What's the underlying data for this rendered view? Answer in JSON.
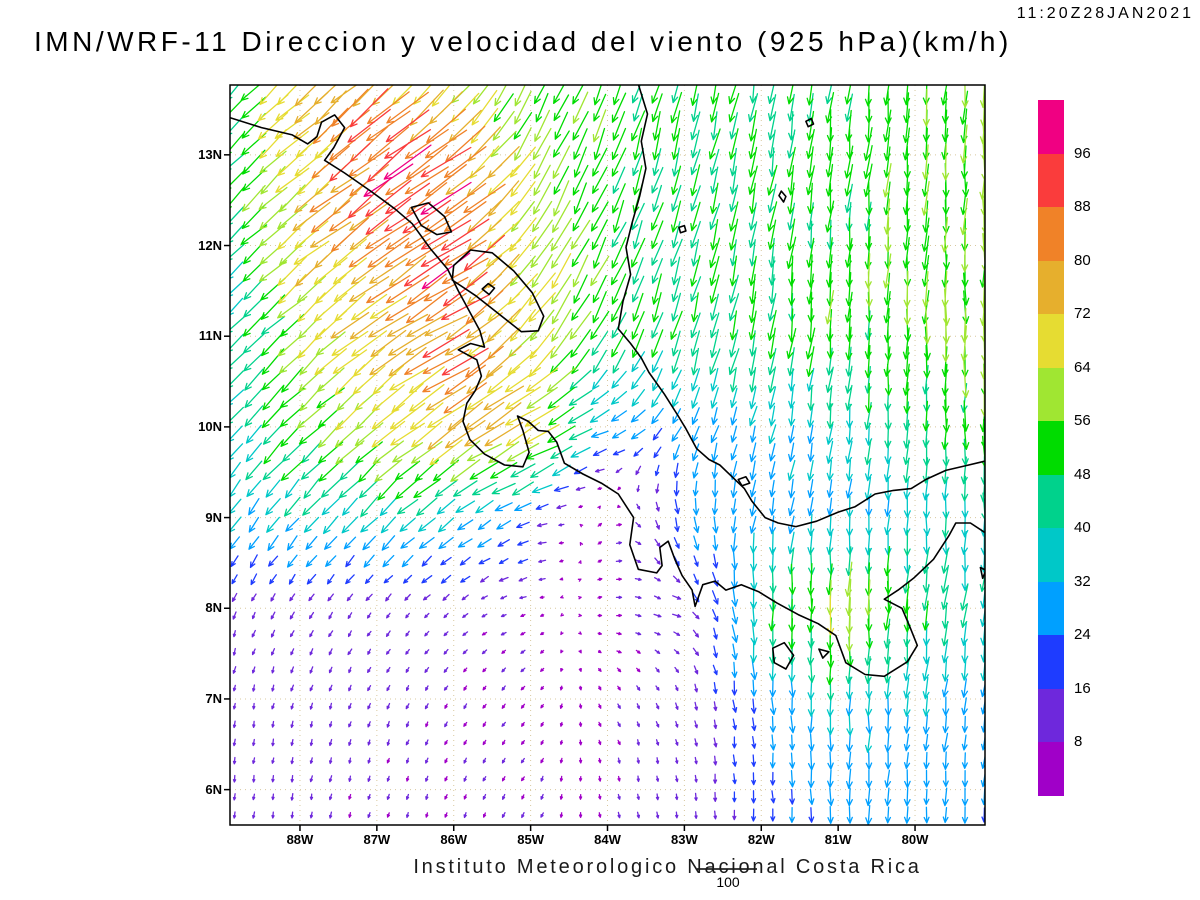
{
  "header": {
    "timestamp": "11:20Z28JAN2021",
    "title": "IMN/WRF-11 Direccion y velocidad del viento (925 hPa)(km/h)"
  },
  "footer": {
    "caption": "Instituto Meteorologico Nacional Costa Rica",
    "reference_label": "100"
  },
  "chart_data": {
    "type": "quiver",
    "title": "IMN/WRF-11 Direccion y velocidad del viento (925 hPa)(km/h)",
    "valid_time": "11:20Z28JAN2021",
    "model": "IMN/WRF-11",
    "variable": "Direccion y velocidad del viento",
    "level": "925 hPa",
    "units": "km/h",
    "reference_vector": 100,
    "arrow_step_deg": {
      "lon": 0.25,
      "lat": 0.2
    },
    "x_axis": {
      "range": [
        -88.91,
        -79.09
      ],
      "ticks": [
        {
          "label": "88W",
          "value": -88
        },
        {
          "label": "87W",
          "value": -87
        },
        {
          "label": "86W",
          "value": -86
        },
        {
          "label": "85W",
          "value": -85
        },
        {
          "label": "84W",
          "value": -84
        },
        {
          "label": "83W",
          "value": -83
        },
        {
          "label": "82W",
          "value": -82
        },
        {
          "label": "81W",
          "value": -81
        },
        {
          "label": "80W",
          "value": -80
        }
      ]
    },
    "y_axis": {
      "range": [
        5.61,
        13.77
      ],
      "ticks": [
        {
          "label": "13N",
          "value": 13
        },
        {
          "label": "12N",
          "value": 12
        },
        {
          "label": "11N",
          "value": 11
        },
        {
          "label": "10N",
          "value": 10
        },
        {
          "label": "9N",
          "value": 9
        },
        {
          "label": "8N",
          "value": 8
        },
        {
          "label": "7N",
          "value": 7
        },
        {
          "label": "6N",
          "value": 6
        }
      ]
    },
    "colorbar": {
      "levels": [
        8,
        16,
        24,
        32,
        40,
        48,
        56,
        64,
        72,
        80,
        88,
        96
      ],
      "colors": [
        "#A000C8",
        "#6E28DC",
        "#1E3CFF",
        "#00A0FF",
        "#00C8C8",
        "#00D28C",
        "#00DC00",
        "#A0E632",
        "#E6DC32",
        "#E6AF2D",
        "#F08228",
        "#FA3C3C",
        "#F00082"
      ]
    },
    "wind_grid": {
      "lons": [
        -89,
        -88,
        -87,
        -86,
        -85,
        -84,
        -83,
        -82,
        -81,
        -80,
        -79
      ],
      "lats": [
        14,
        13,
        12,
        11,
        10,
        9,
        8,
        7,
        6
      ],
      "speed": [
        [
          52,
          68,
          75,
          60,
          52,
          50,
          50,
          48,
          50,
          55,
          58
        ],
        [
          45,
          70,
          92,
          88,
          58,
          52,
          48,
          48,
          50,
          55,
          60
        ],
        [
          40,
          66,
          84,
          94,
          66,
          52,
          48,
          48,
          50,
          55,
          60
        ],
        [
          38,
          60,
          72,
          86,
          66,
          50,
          46,
          48,
          52,
          55,
          58
        ],
        [
          35,
          55,
          65,
          78,
          72,
          30,
          28,
          30,
          36,
          45,
          55
        ],
        [
          32,
          35,
          38,
          35,
          22,
          10,
          25,
          30,
          30,
          35,
          40
        ],
        [
          12,
          12,
          10,
          10,
          8,
          8,
          14,
          45,
          66,
          50,
          38
        ],
        [
          10,
          10,
          10,
          8,
          8,
          8,
          10,
          25,
          36,
          30,
          28
        ],
        [
          10,
          10,
          8,
          8,
          8,
          8,
          10,
          20,
          30,
          28,
          25
        ]
      ],
      "dir_toward": [
        [
          225,
          228,
          228,
          215,
          205,
          200,
          195,
          190,
          188,
          185,
          183
        ],
        [
          225,
          228,
          232,
          235,
          210,
          200,
          195,
          190,
          186,
          184,
          182
        ],
        [
          225,
          230,
          234,
          240,
          215,
          205,
          196,
          190,
          185,
          183,
          180
        ],
        [
          224,
          228,
          233,
          240,
          220,
          206,
          196,
          190,
          185,
          182,
          180
        ],
        [
          220,
          224,
          230,
          236,
          240,
          250,
          205,
          195,
          188,
          183,
          180
        ],
        [
          215,
          220,
          225,
          232,
          255,
          60,
          170,
          192,
          186,
          182,
          180
        ],
        [
          200,
          210,
          220,
          230,
          255,
          80,
          110,
          180,
          180,
          185,
          190
        ],
        [
          190,
          196,
          202,
          212,
          222,
          150,
          162,
          176,
          180,
          185,
          190
        ],
        [
          186,
          190,
          196,
          202,
          210,
          168,
          174,
          178,
          180,
          184,
          186
        ]
      ]
    },
    "map": {
      "coastlines": [
        {
          "name": "pacific-mainland",
          "closed": false,
          "pts": [
            [
              -88.95,
              13.42
            ],
            [
              -88.5,
              13.3
            ],
            [
              -88.1,
              13.22
            ],
            [
              -87.9,
              13.12
            ],
            [
              -87.78,
              13.2
            ],
            [
              -87.72,
              13.36
            ],
            [
              -87.55,
              13.44
            ],
            [
              -87.42,
              13.3
            ],
            [
              -87.56,
              13.08
            ],
            [
              -87.68,
              12.94
            ],
            [
              -87.42,
              12.8
            ],
            [
              -87.08,
              12.6
            ],
            [
              -86.76,
              12.4
            ],
            [
              -86.54,
              12.24
            ],
            [
              -86.3,
              11.96
            ],
            [
              -86.08,
              11.74
            ],
            [
              -85.94,
              11.5
            ],
            [
              -85.8,
              11.28
            ],
            [
              -85.66,
              11.06
            ],
            [
              -85.6,
              10.88
            ],
            [
              -85.78,
              10.92
            ],
            [
              -85.94,
              10.85
            ],
            [
              -85.7,
              10.74
            ],
            [
              -85.64,
              10.56
            ],
            [
              -85.72,
              10.4
            ],
            [
              -85.83,
              10.26
            ],
            [
              -85.88,
              10.06
            ],
            [
              -85.79,
              9.86
            ],
            [
              -85.6,
              9.7
            ],
            [
              -85.34,
              9.58
            ],
            [
              -85.1,
              9.56
            ],
            [
              -85.02,
              9.72
            ],
            [
              -85.1,
              9.96
            ],
            [
              -85.17,
              10.12
            ],
            [
              -85.03,
              10.06
            ],
            [
              -84.9,
              9.96
            ],
            [
              -84.77,
              9.95
            ],
            [
              -84.66,
              9.83
            ],
            [
              -84.56,
              9.6
            ],
            [
              -84.32,
              9.48
            ],
            [
              -84.08,
              9.38
            ],
            [
              -83.86,
              9.26
            ],
            [
              -83.66,
              9.0
            ],
            [
              -83.71,
              8.7
            ],
            [
              -83.6,
              8.43
            ],
            [
              -83.36,
              8.39
            ],
            [
              -83.29,
              8.47
            ],
            [
              -83.32,
              8.67
            ],
            [
              -83.21,
              8.74
            ],
            [
              -83.12,
              8.53
            ],
            [
              -83.03,
              8.36
            ],
            [
              -82.9,
              8.2
            ],
            [
              -82.86,
              8.02
            ],
            [
              -82.76,
              8.26
            ],
            [
              -82.6,
              8.3
            ],
            [
              -82.46,
              8.2
            ],
            [
              -82.26,
              8.26
            ],
            [
              -82.03,
              8.18
            ],
            [
              -81.8,
              8.06
            ],
            [
              -81.52,
              7.93
            ],
            [
              -81.26,
              7.83
            ],
            [
              -81.03,
              7.7
            ],
            [
              -80.9,
              7.4
            ],
            [
              -80.65,
              7.27
            ],
            [
              -80.4,
              7.25
            ],
            [
              -80.1,
              7.41
            ],
            [
              -79.97,
              7.59
            ],
            [
              -80.07,
              7.8
            ],
            [
              -80.17,
              8.0
            ],
            [
              -80.4,
              8.1
            ],
            [
              -80.22,
              8.2
            ],
            [
              -80.02,
              8.33
            ],
            [
              -79.76,
              8.54
            ],
            [
              -79.56,
              8.8
            ],
            [
              -79.47,
              8.94
            ],
            [
              -79.28,
              8.94
            ],
            [
              -79.1,
              8.84
            ]
          ]
        },
        {
          "name": "caribbean-coast",
          "closed": false,
          "pts": [
            [
              -83.6,
              13.78
            ],
            [
              -83.48,
              13.45
            ],
            [
              -83.56,
              13.15
            ],
            [
              -83.5,
              12.85
            ],
            [
              -83.58,
              12.55
            ],
            [
              -83.68,
              12.25
            ],
            [
              -83.76,
              11.98
            ],
            [
              -83.7,
              11.68
            ],
            [
              -83.8,
              11.38
            ],
            [
              -83.86,
              11.08
            ],
            [
              -83.7,
              10.92
            ],
            [
              -83.56,
              10.76
            ],
            [
              -83.46,
              10.6
            ],
            [
              -83.26,
              10.36
            ],
            [
              -83.08,
              10.12
            ],
            [
              -82.98,
              9.98
            ],
            [
              -82.84,
              9.76
            ],
            [
              -82.68,
              9.64
            ],
            [
              -82.54,
              9.58
            ],
            [
              -82.38,
              9.45
            ],
            [
              -82.22,
              9.32
            ],
            [
              -82.12,
              9.18
            ],
            [
              -81.95,
              9.0
            ],
            [
              -81.78,
              8.94
            ],
            [
              -81.55,
              8.9
            ],
            [
              -81.28,
              8.96
            ],
            [
              -81.0,
              9.06
            ],
            [
              -80.78,
              9.12
            ],
            [
              -80.52,
              9.26
            ],
            [
              -80.28,
              9.3
            ],
            [
              -80.05,
              9.32
            ],
            [
              -79.86,
              9.42
            ],
            [
              -79.6,
              9.52
            ],
            [
              -79.35,
              9.57
            ],
            [
              -79.1,
              9.62
            ]
          ]
        },
        {
          "name": "lake-nicaragua",
          "closed": true,
          "pts": [
            [
              -86.0,
              11.78
            ],
            [
              -85.78,
              11.95
            ],
            [
              -85.5,
              11.92
            ],
            [
              -85.22,
              11.72
            ],
            [
              -84.98,
              11.48
            ],
            [
              -84.83,
              11.22
            ],
            [
              -84.9,
              11.06
            ],
            [
              -85.12,
              11.05
            ],
            [
              -85.42,
              11.25
            ],
            [
              -85.72,
              11.45
            ],
            [
              -86.02,
              11.62
            ]
          ]
        },
        {
          "name": "ometepe-island",
          "closed": true,
          "pts": [
            [
              -85.63,
              11.52
            ],
            [
              -85.55,
              11.58
            ],
            [
              -85.47,
              11.53
            ],
            [
              -85.54,
              11.46
            ]
          ]
        },
        {
          "name": "lake-managua",
          "closed": true,
          "pts": [
            [
              -86.55,
              12.42
            ],
            [
              -86.33,
              12.47
            ],
            [
              -86.12,
              12.32
            ],
            [
              -86.03,
              12.15
            ],
            [
              -86.22,
              12.12
            ],
            [
              -86.42,
              12.22
            ]
          ]
        },
        {
          "name": "providencia-island",
          "closed": true,
          "pts": [
            [
              -81.42,
              13.37
            ],
            [
              -81.35,
              13.4
            ],
            [
              -81.32,
              13.34
            ],
            [
              -81.39,
              13.31
            ]
          ]
        },
        {
          "name": "san-andres-island",
          "closed": true,
          "pts": [
            [
              -81.74,
              12.6
            ],
            [
              -81.68,
              12.54
            ],
            [
              -81.71,
              12.48
            ],
            [
              -81.77,
              12.55
            ]
          ]
        },
        {
          "name": "corn-islands",
          "closed": true,
          "pts": [
            [
              -83.07,
              12.2
            ],
            [
              -83.0,
              12.22
            ],
            [
              -82.98,
              12.16
            ],
            [
              -83.05,
              12.14
            ]
          ]
        },
        {
          "name": "bocas-islands",
          "closed": true,
          "pts": [
            [
              -82.3,
              9.42
            ],
            [
              -82.2,
              9.45
            ],
            [
              -82.15,
              9.38
            ],
            [
              -82.25,
              9.35
            ]
          ]
        },
        {
          "name": "coiba-island",
          "closed": true,
          "pts": [
            [
              -81.85,
              7.56
            ],
            [
              -81.7,
              7.62
            ],
            [
              -81.58,
              7.48
            ],
            [
              -81.68,
              7.33
            ],
            [
              -81.83,
              7.4
            ]
          ]
        },
        {
          "name": "cebaco-island",
          "closed": true,
          "pts": [
            [
              -81.25,
              7.55
            ],
            [
              -81.12,
              7.52
            ],
            [
              -81.2,
              7.45
            ]
          ]
        },
        {
          "name": "pearl-islands",
          "closed": true,
          "pts": [
            [
              -79.15,
              8.45
            ],
            [
              -79.08,
              8.42
            ],
            [
              -79.12,
              8.33
            ]
          ]
        }
      ]
    }
  }
}
